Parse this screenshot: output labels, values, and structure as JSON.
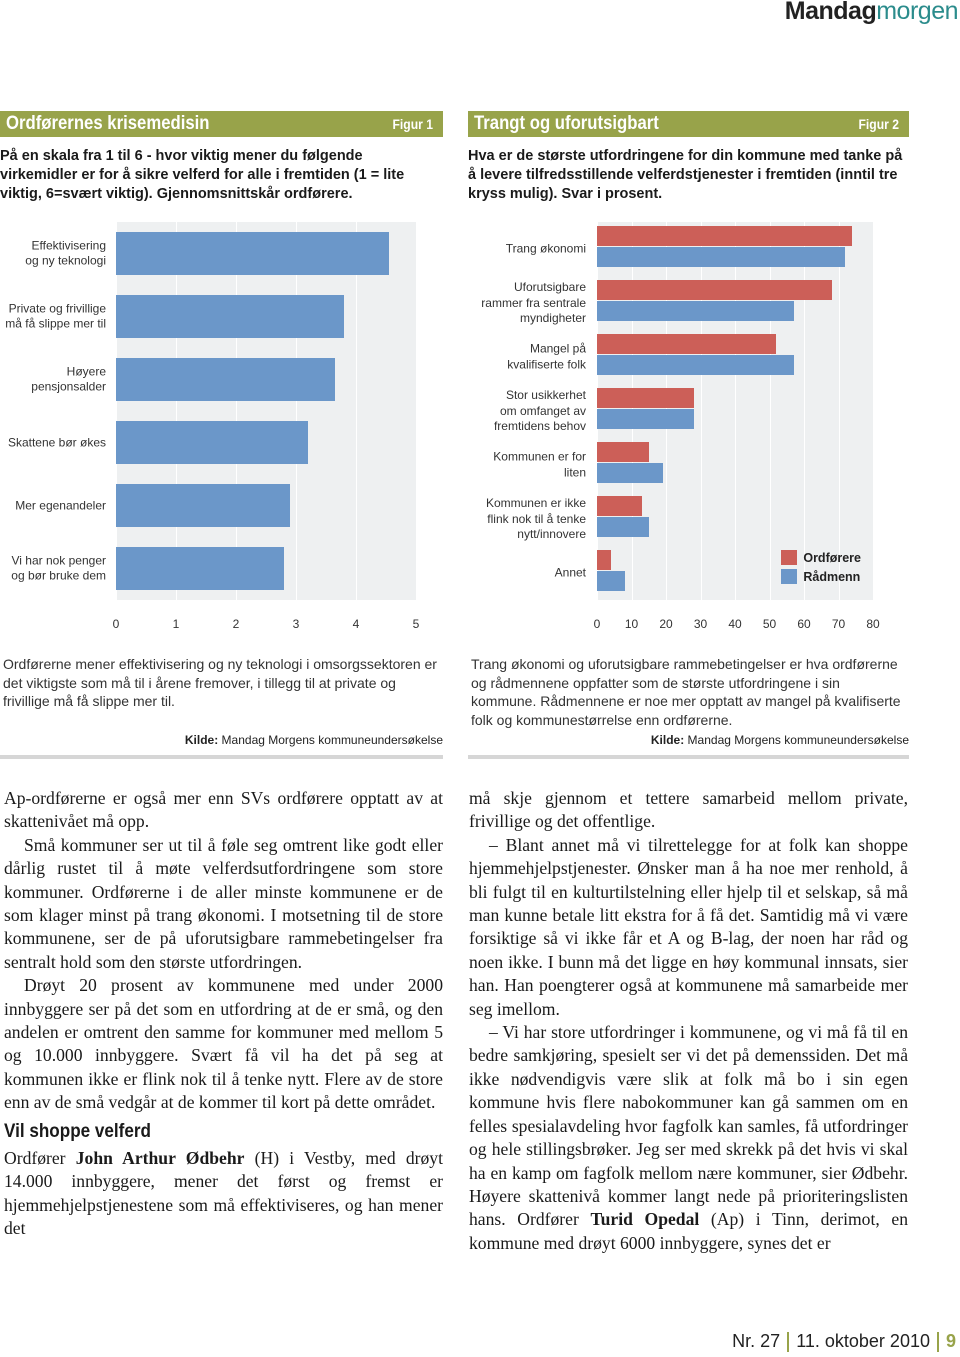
{
  "header": {
    "brand_left": "Mandag",
    "brand_right": "morgen"
  },
  "chart_data": [
    {
      "type": "bar",
      "orientation": "horizontal",
      "title": "Ordførernes krisemedisin",
      "figure_label": "Figur 1",
      "subtitle": "På en skala fra 1 til 6 - hvor viktig mener du følgende virkemidler er for å sikre velferd for alle i fremtiden (1 = lite viktig, 6=svært viktig). Gjennomsnittskår ordførere.",
      "categories": [
        "Effektivisering\nog ny teknologi",
        "Private og frivillige\nmå få slippe mer til",
        "Høyere\npensjonsalder",
        "Skattene bør økes",
        "Mer egenandeler",
        "Vi har nok penger\nog bør bruke dem"
      ],
      "values": [
        4.55,
        3.8,
        3.65,
        3.2,
        2.9,
        2.8
      ],
      "color": "#6b97c9",
      "xlim": [
        0,
        5
      ],
      "xticks": [
        0,
        1,
        2,
        3,
        4,
        5
      ],
      "grid": true,
      "caption": "Ordførerne mener effektivisering og ny teknologi i omsorgssektoren er det viktigste som må til i årene fremover, i tillegg til at private og frivillige må få slippe mer til.",
      "source_label": "Kilde:",
      "source": "Mandag Morgens kommuneundersøkelse"
    },
    {
      "type": "bar",
      "orientation": "horizontal",
      "title": "Trangt og uforutsigbart",
      "figure_label": "Figur 2",
      "subtitle": "Hva er de største utfordringene for din kommune med tanke på å levere tilfredsstillende velferdstjenester i fremtiden (inntil tre kryss mulig). Svar i prosent.",
      "categories": [
        "Trang økonomi",
        "Uforutsigbare\nrammer fra sentrale\nmyndigheter",
        "Mangel på\nkvalifiserte folk",
        "Stor usikkerhet\nom omfanget av\nfremtidens behov",
        "Kommunen er for liten",
        "Kommunen er ikke\nflink nok til å tenke\nnytt/innovere",
        "Annet"
      ],
      "series": [
        {
          "name": "Ordførere",
          "color": "#cc5f58",
          "values": [
            74,
            68,
            52,
            28,
            15,
            13,
            4
          ]
        },
        {
          "name": "Rådmenn",
          "color": "#6b97c9",
          "values": [
            72,
            57,
            57,
            28,
            19,
            15,
            8
          ]
        }
      ],
      "xlim": [
        0,
        80
      ],
      "xticks": [
        0,
        10,
        20,
        30,
        40,
        50,
        60,
        70,
        80
      ],
      "grid": true,
      "legend": "lower right",
      "caption": "Trang økonomi og uforutsigbare rammebetingelser er hva ordførerne og rådmennene oppfatter som de største utfordringene i sin kommune. Rådmennene er noe mer opptatt av mangel på kvalifiserte folk og kommunestørrelse enn ordførerne.",
      "source_label": "Kilde:",
      "source": "Mandag Morgens kommuneundersøkelse"
    }
  ],
  "article": {
    "columns": [
      [
        {
          "type": "paragraph",
          "indent": false,
          "runs": [
            "Ap-ordførerne er også mer enn SVs ordførere opptatt av at skattenivået må opp."
          ]
        },
        {
          "type": "paragraph",
          "indent": true,
          "runs": [
            "Små kommuner ser ut til å føle seg omtrent like godt eller dårlig rustet til å møte velferdsutfordringene som store kommuner. Ordførerne i de aller minste kommunene er de som klager minst på trang økonomi. I motsetning til de store kommunene, ser de på uforutsigbare rammebetingelser fra sentralt hold som den største utfordringen."
          ]
        },
        {
          "type": "paragraph",
          "indent": true,
          "runs": [
            "Drøyt 20 prosent av kommunene med under 2000 innbyggere ser på det som en utfordring at de er små, og den andelen er omtrent den samme for kommuner med mellom 5 og 10.000 innbyggere. Svært få vil ha det på seg at kommunen ikke er flink nok til å tenke nytt. Flere av de store enn av de små vedgår at de kommer til kort på dette området."
          ]
        },
        {
          "type": "heading",
          "text": "Vil shoppe velferd"
        },
        {
          "type": "paragraph",
          "indent": false,
          "runs": [
            "Ordfører ",
            {
              "bold": "John Arthur Ødbehr"
            },
            " (H) i Vestby, med drøyt 14.000 innbyggere, mener det først og fremst er hjemmehjelpstjenestene som må effektiviseres, og han mener det"
          ]
        }
      ],
      [
        {
          "type": "paragraph",
          "indent": false,
          "runs": [
            "må skje gjennom et tettere samarbeid mellom private, frivillige og det offentlige."
          ]
        },
        {
          "type": "paragraph",
          "indent": true,
          "runs": [
            "– Blant annet må vi tilrettelegge for at folk kan shoppe hjemmehjelpstjenester. Ønsker man å ha noe mer renhold, å bli fulgt til en kulturtilstelning eller hjelp til et selskap, så må man kunne betale litt ekstra for å få det. Samtidig må vi være forsiktige så vi ikke får et A og B-lag, der noen har råd og noen ikke. I bunn må det ligge en høy kommunal innsats, sier han. Han poengterer også at kommunene må samarbeide mer seg imellom."
          ]
        },
        {
          "type": "paragraph",
          "indent": true,
          "runs": [
            "– Vi har store utfordringer i kommunene, og vi må få til en bedre samkjøring, spesielt ser vi det på demenssiden. Det må ikke nødvendigvis være slik at folk må bo i sin egen kommune hvis flere nabokommuner kan gå sammen om en felles spesialavdeling hvor fagfolk kan samles, få utfordringer og hele stillingsbrøker. Jeg ser med skrekk på det hvis vi skal ha en kamp om fagfolk mellom nære kommuner, sier Ødbehr. Høyere skattenivå kommer langt nede på prioriteringslisten hans. Ordfører ",
            {
              "bold": "Turid Opedal"
            },
            " (Ap) i Tinn, derimot, en kommune med drøyt 6000 innbyggere, synes det er"
          ]
        }
      ]
    ]
  },
  "footer": {
    "issue": "Nr. 27",
    "date": "11. oktober 2010",
    "page": "9"
  }
}
